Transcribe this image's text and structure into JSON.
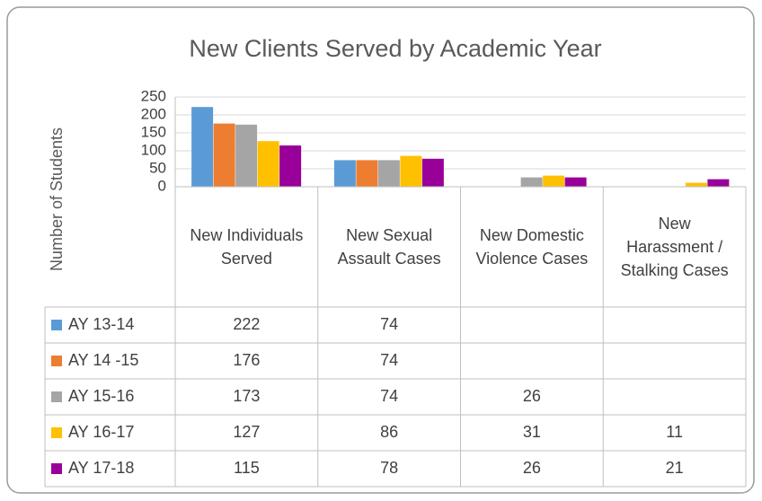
{
  "chart_data": {
    "type": "bar",
    "title": "New Clients Served by Academic Year",
    "y_label": "Number of Students",
    "categories": [
      "New Individuals Served",
      "New Sexual Assault Cases",
      "New Domestic Violence Cases",
      "New Harassment / Stalking Cases"
    ],
    "series": [
      {
        "name": "AY 13-14",
        "color": "#5b9bd5",
        "values": [
          222,
          74,
          null,
          null
        ]
      },
      {
        "name": "AY 14 -15",
        "color": "#ed7d31",
        "values": [
          176,
          74,
          null,
          null
        ]
      },
      {
        "name": "AY 15-16",
        "color": "#a5a5a5",
        "values": [
          173,
          74,
          26,
          null
        ]
      },
      {
        "name": "AY 16-17",
        "color": "#ffc000",
        "values": [
          127,
          86,
          31,
          11
        ]
      },
      {
        "name": "AY 17-18",
        "color": "#990099",
        "values": [
          115,
          78,
          26,
          21
        ]
      }
    ],
    "ylim": [
      0,
      250
    ],
    "yticks": [
      0,
      50,
      100,
      150,
      200,
      250
    ],
    "grid": true,
    "data_table": true
  }
}
